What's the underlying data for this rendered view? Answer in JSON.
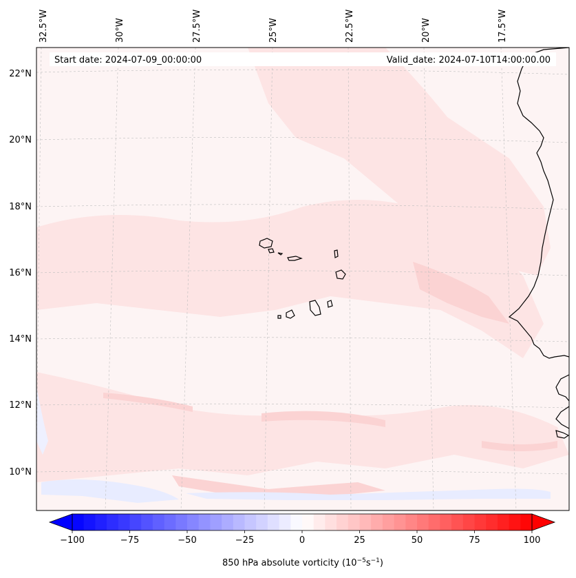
{
  "map": {
    "start_date": "Start date: 2024-07-09_00:00:00",
    "valid_date": "Valid_date: 2024-07-10T14:00:00.00",
    "lon_labels": [
      "32.5°W",
      "30°W",
      "27.5°W",
      "25°W",
      "22.5°W",
      "20°W",
      "17.5°W"
    ],
    "lat_labels": [
      "22°N",
      "20°N",
      "18°N",
      "16°N",
      "14°N",
      "12°N",
      "10°N"
    ],
    "field_colors": {
      "background": "#fdf4f4",
      "weak_positive": "#fde4e4",
      "moderate_positive": "#fbd3d3",
      "weak_negative": "#e8ecff",
      "coastline": "#000000"
    }
  },
  "colorbar": {
    "label": "850 hPa absolute vorticity (10",
    "label_exp": "−5",
    "label_mid": "s",
    "label_exp2": "−1",
    "label_end": ")",
    "tick_labels": [
      "−100",
      "−75",
      "−50",
      "−25",
      "0",
      "25",
      "50",
      "75",
      "100"
    ],
    "range": [
      -100,
      100
    ],
    "colors": {
      "min": "#0000ff",
      "mid": "#ffffff",
      "max": "#ff0000"
    }
  }
}
